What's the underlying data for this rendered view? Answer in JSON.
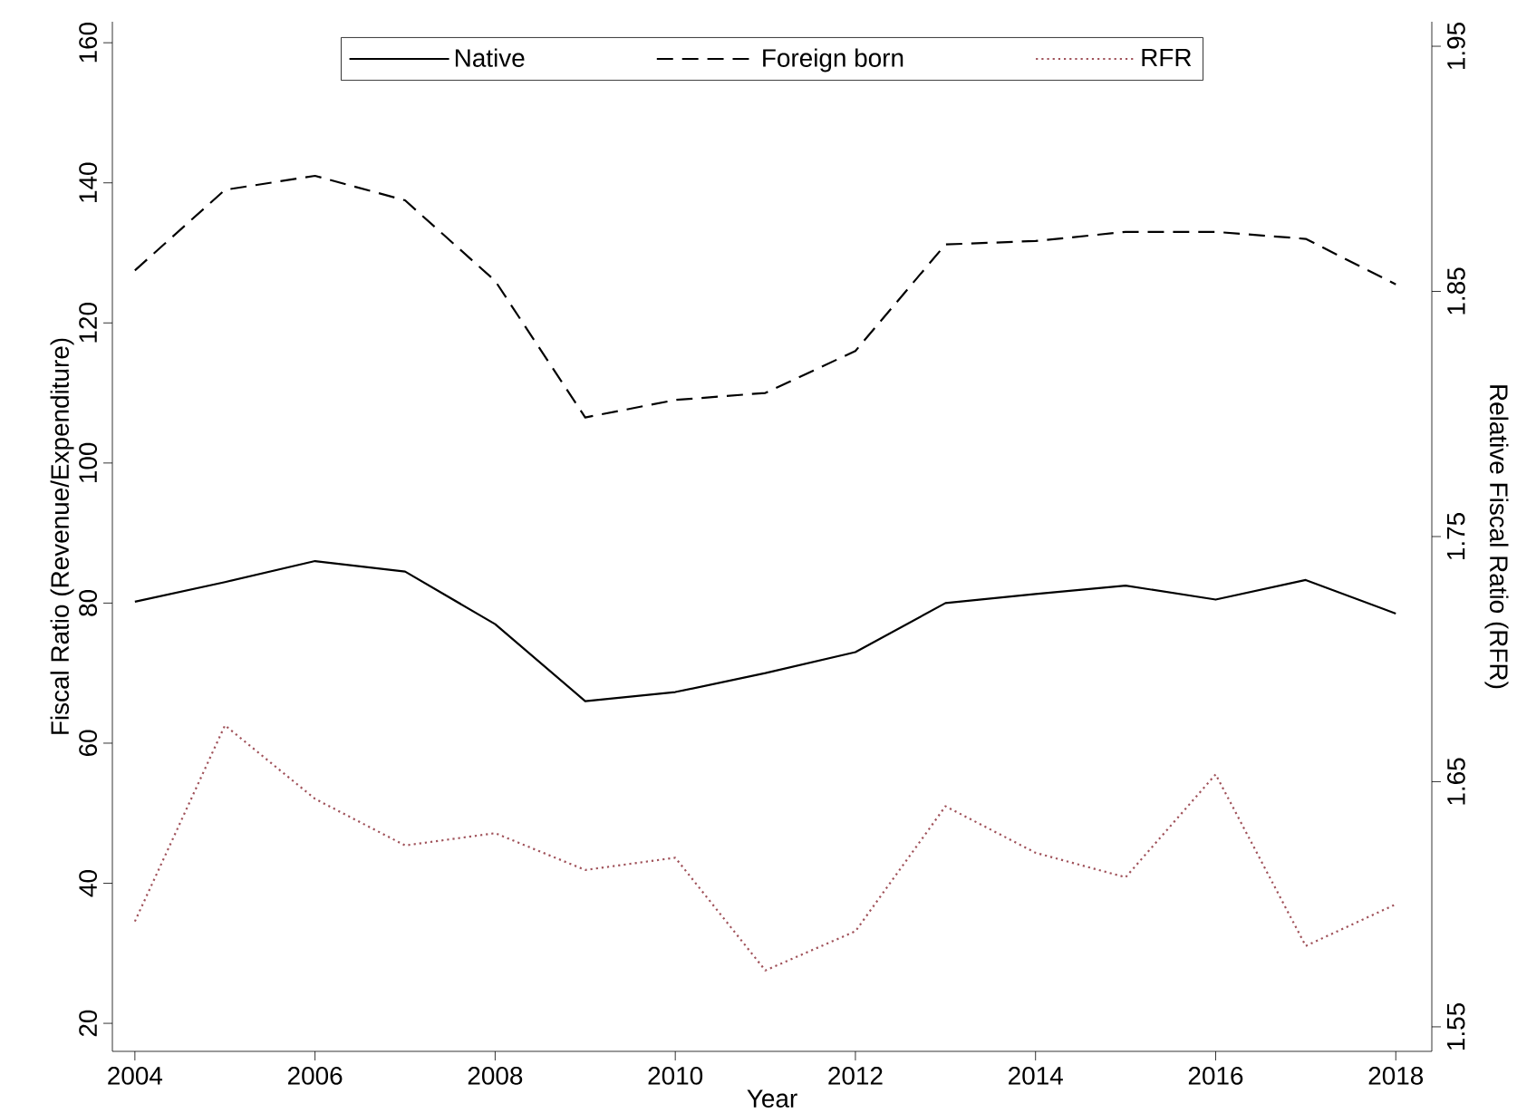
{
  "chart_data": {
    "type": "line",
    "xlabel": "Year",
    "ylabel": "Fiscal Ratio (Revenue/Expenditure)",
    "y2label": "Relative Fiscal Ratio (RFR)",
    "x": [
      2004,
      2005,
      2006,
      2007,
      2008,
      2009,
      2010,
      2011,
      2012,
      2013,
      2014,
      2015,
      2016,
      2017,
      2018
    ],
    "series": [
      {
        "name": "Native",
        "color": "#000000",
        "line_style": "solid",
        "values": [
          80.2,
          83,
          86,
          84.5,
          77,
          66,
          67.3,
          70,
          73,
          80,
          81.3,
          82.5,
          80.5,
          83.3,
          78.5
        ]
      },
      {
        "name": "Foreign born",
        "color": "#000000",
        "line_style": "dashed",
        "values": [
          127.5,
          139,
          141,
          137.5,
          126,
          106.5,
          109,
          110,
          116,
          131.2,
          131.7,
          133,
          133,
          132,
          125.5
        ]
      },
      {
        "name": "RFR",
        "color": "#a0525a",
        "line_style": "dotted",
        "axis": "y2",
        "values": [
          1.593,
          1.673,
          1.643,
          1.624,
          1.629,
          1.614,
          1.619,
          1.573,
          1.589,
          1.64,
          1.621,
          1.611,
          1.653,
          1.583,
          1.6
        ]
      }
    ],
    "xlim": [
      2003.75,
      2018.4
    ],
    "ylim": [
      16,
      163
    ],
    "y2lim": [
      1.54,
      1.96
    ],
    "xticks": [
      2004,
      2006,
      2008,
      2010,
      2012,
      2014,
      2016,
      2018
    ],
    "yticks": [
      20,
      40,
      60,
      80,
      100,
      120,
      140,
      160
    ],
    "y2ticks": [
      {
        "value": 1.55,
        "label": "1.55"
      },
      {
        "value": 1.65,
        "label": "1.65"
      },
      {
        "value": 1.75,
        "label": "1.75"
      },
      {
        "value": 1.85,
        "label": "1.85"
      },
      {
        "value": 1.95,
        "label": "1.95"
      }
    ],
    "grid": false,
    "legend": "top",
    "marker": "none"
  }
}
